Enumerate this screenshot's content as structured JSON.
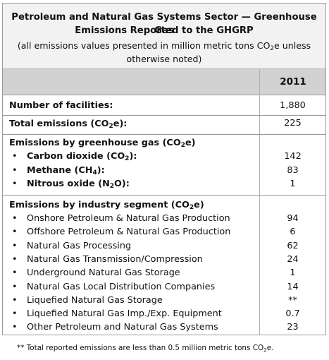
{
  "header": {
    "title_line1": "Petroleum and Natural Gas Systems Sector — Greenhouse Gas",
    "title_line2": "Emissions Reported to the GHGRP",
    "subtitle_line1_pre": "(all emissions values presented in million metric tons CO",
    "subtitle_line1_sub": "2",
    "subtitle_line1_post": "e unless",
    "subtitle_line2": "otherwise noted)"
  },
  "year": "2011",
  "facilities": {
    "label": "Number of facilities:",
    "value": "1,880"
  },
  "total": {
    "label_pre": "Total emissions (CO",
    "label_sub": "2",
    "label_post": "e):",
    "value": "225"
  },
  "by_gas": {
    "heading_pre": "Emissions by greenhouse gas (CO",
    "heading_sub": "2",
    "heading_post": "e)",
    "items": [
      {
        "pre": "Carbon dioxide (CO",
        "sub": "2",
        "post": "):",
        "value": "142"
      },
      {
        "pre": "Methane (CH",
        "sub": "4",
        "post": "):",
        "value": "83"
      },
      {
        "pre": "Nitrous oxide (N",
        "sub": "2",
        "post": "O):",
        "value": "1"
      }
    ]
  },
  "by_segment": {
    "heading_pre": "Emissions by industry segment (CO",
    "heading_sub": "2",
    "heading_post": "e)",
    "items": [
      {
        "label": "Onshore Petroleum & Natural Gas Production",
        "value": "94"
      },
      {
        "label": "Offshore Petroleum & Natural Gas Production",
        "value": "6"
      },
      {
        "label": "Natural Gas Processing",
        "value": "62"
      },
      {
        "label": "Natural Gas Transmission/Compression",
        "value": "24"
      },
      {
        "label": "Underground Natural Gas Storage",
        "value": "1"
      },
      {
        "label": "Natural Gas Local Distribution Companies",
        "value": "14"
      },
      {
        "label": "Liquefied Natural Gas Storage",
        "value": "**"
      },
      {
        "label": "Liquefied Natural Gas Imp./Exp. Equipment",
        "value": "0.7"
      },
      {
        "label": "Other Petroleum and Natural Gas Systems",
        "value": "23"
      }
    ]
  },
  "bullet_char": "•",
  "footnote": {
    "pre": "** Total reported emissions are less than 0.5 million metric tons CO",
    "sub": "2",
    "post": "e."
  }
}
